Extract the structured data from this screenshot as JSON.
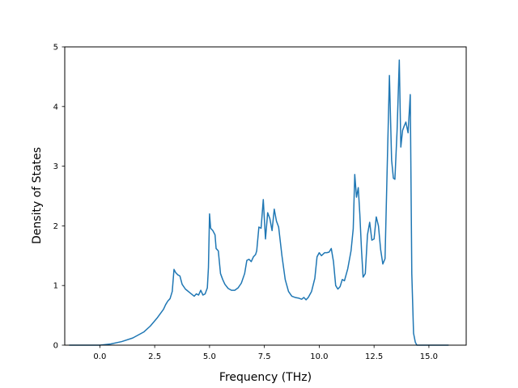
{
  "chart_data": {
    "type": "line",
    "title": "",
    "xlabel": "Frequency (THz)",
    "ylabel": "Density of States",
    "xlim": [
      -1.6,
      16.7
    ],
    "ylim": [
      0,
      5
    ],
    "xticks": [
      0.0,
      2.5,
      5.0,
      7.5,
      10.0,
      12.5,
      15.0
    ],
    "xtick_labels": [
      "0.0",
      "2.5",
      "5.0",
      "7.5",
      "10.0",
      "12.5",
      "15.0"
    ],
    "yticks": [
      0,
      1,
      2,
      3,
      4,
      5
    ],
    "ytick_labels": [
      "0",
      "1",
      "2",
      "3",
      "4",
      "5"
    ],
    "grid": false,
    "series": [
      {
        "color": "#1f77b4",
        "x": [
          -1.4,
          -0.5,
          0.0,
          0.5,
          1.0,
          1.5,
          2.0,
          2.3,
          2.6,
          2.9,
          3.0,
          3.1,
          3.2,
          3.3,
          3.38,
          3.45,
          3.55,
          3.65,
          3.75,
          3.9,
          4.1,
          4.3,
          4.4,
          4.5,
          4.6,
          4.7,
          4.8,
          4.9,
          4.95,
          5.0,
          5.05,
          5.15,
          5.25,
          5.3,
          5.4,
          5.5,
          5.6,
          5.7,
          5.85,
          6.0,
          6.15,
          6.3,
          6.45,
          6.6,
          6.7,
          6.8,
          6.9,
          7.0,
          7.1,
          7.15,
          7.25,
          7.35,
          7.45,
          7.55,
          7.65,
          7.75,
          7.85,
          7.95,
          8.05,
          8.15,
          8.3,
          8.45,
          8.6,
          8.75,
          8.9,
          9.05,
          9.2,
          9.3,
          9.4,
          9.5,
          9.65,
          9.8,
          9.9,
          10.0,
          10.1,
          10.25,
          10.35,
          10.45,
          10.55,
          10.65,
          10.75,
          10.85,
          10.95,
          11.05,
          11.15,
          11.3,
          11.45,
          11.55,
          11.62,
          11.7,
          11.78,
          11.85,
          11.93,
          12.0,
          12.1,
          12.2,
          12.3,
          12.4,
          12.5,
          12.6,
          12.7,
          12.8,
          12.9,
          13.0,
          13.1,
          13.2,
          13.3,
          13.38,
          13.45,
          13.55,
          13.65,
          13.72,
          13.8,
          13.88,
          13.95,
          14.05,
          14.15,
          14.22,
          14.3,
          14.38,
          14.45,
          14.6,
          14.8,
          15.0,
          15.5,
          15.9
        ],
        "y": [
          0.0,
          0.0,
          0.0,
          0.02,
          0.06,
          0.12,
          0.22,
          0.32,
          0.45,
          0.6,
          0.68,
          0.74,
          0.78,
          0.9,
          1.27,
          1.22,
          1.18,
          1.16,
          1.02,
          0.94,
          0.88,
          0.82,
          0.86,
          0.84,
          0.92,
          0.84,
          0.86,
          0.96,
          1.3,
          2.2,
          1.96,
          1.92,
          1.85,
          1.62,
          1.58,
          1.2,
          1.1,
          1.02,
          0.95,
          0.92,
          0.92,
          0.96,
          1.04,
          1.2,
          1.42,
          1.44,
          1.4,
          1.48,
          1.52,
          1.58,
          1.98,
          1.96,
          2.44,
          1.78,
          2.22,
          2.12,
          1.92,
          2.28,
          2.08,
          1.98,
          1.5,
          1.1,
          0.9,
          0.82,
          0.8,
          0.79,
          0.77,
          0.8,
          0.76,
          0.8,
          0.9,
          1.12,
          1.48,
          1.55,
          1.5,
          1.55,
          1.55,
          1.56,
          1.62,
          1.4,
          1.0,
          0.94,
          0.98,
          1.1,
          1.08,
          1.28,
          1.58,
          1.95,
          2.86,
          2.48,
          2.64,
          2.2,
          1.58,
          1.14,
          1.2,
          1.85,
          2.06,
          1.76,
          1.78,
          2.15,
          2.0,
          1.6,
          1.36,
          1.45,
          3.0,
          4.52,
          3.1,
          2.8,
          2.78,
          3.6,
          4.78,
          3.32,
          3.6,
          3.68,
          3.74,
          3.56,
          4.2,
          1.2,
          0.2,
          0.05,
          0.0,
          0.0,
          0.0,
          0.0,
          0.0,
          0.0
        ]
      }
    ]
  }
}
